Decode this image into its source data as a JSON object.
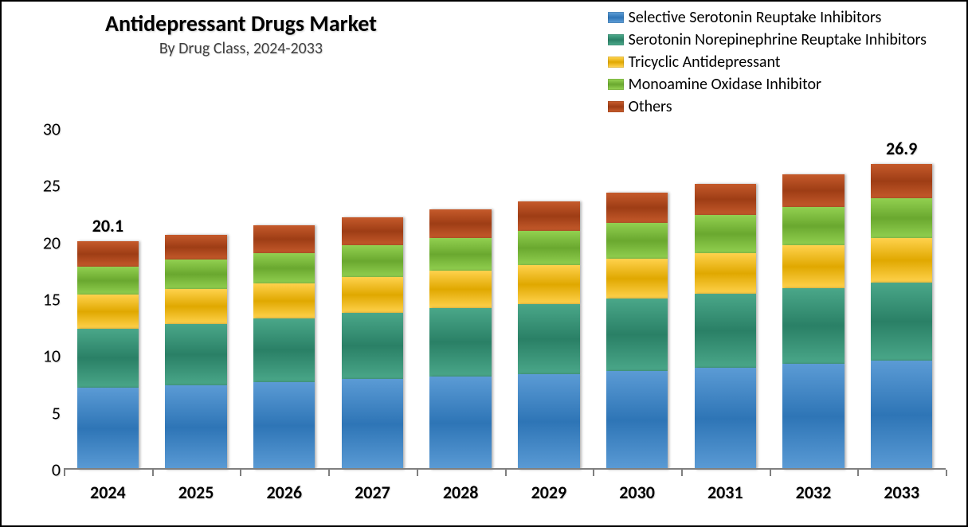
{
  "chart": {
    "type": "stacked-bar",
    "title": "Antidepressant Drugs Market",
    "subtitle": "By Drug Class, 2024-2033",
    "title_fontsize": 28,
    "subtitle_fontsize": 20,
    "background_color": "#ffffff",
    "border_color": "#000000",
    "ylim": [
      0,
      30
    ],
    "ytick_step": 5,
    "yticks": [
      0,
      5,
      10,
      15,
      20,
      25,
      30
    ],
    "axis_font_size": 22,
    "axis_font_weight_x": "700",
    "baseline_color": "#7f7f7f",
    "bar_width_pct": 70,
    "categories": [
      "2024",
      "2025",
      "2026",
      "2027",
      "2028",
      "2029",
      "2030",
      "2031",
      "2032",
      "2033"
    ],
    "series": [
      {
        "name": "Selective Serotonin Reuptake Inhibitors",
        "color_class": "grad-blue",
        "color": "#2e75b6"
      },
      {
        "name": "Serotonin Norepinephrine Reuptake Inhibitors",
        "color_class": "grad-teal",
        "color": "#2a8066"
      },
      {
        "name": "Tricyclic Antidepressant",
        "color_class": "grad-gold",
        "color": "#e0a800"
      },
      {
        "name": "Monoamine Oxidase Inhibitor",
        "color_class": "grad-green",
        "color": "#6aa82f"
      },
      {
        "name": "Others",
        "color_class": "grad-brick",
        "color": "#9e3d15"
      }
    ],
    "stacks": [
      {
        "total": 20.1,
        "label": "20.1",
        "values": [
          7.2,
          5.2,
          3.0,
          2.5,
          2.2
        ]
      },
      {
        "total": 20.7,
        "label": "",
        "values": [
          7.4,
          5.4,
          3.1,
          2.6,
          2.2
        ]
      },
      {
        "total": 21.5,
        "label": "",
        "values": [
          7.7,
          5.6,
          3.1,
          2.7,
          2.4
        ]
      },
      {
        "total": 22.2,
        "label": "",
        "values": [
          8.0,
          5.8,
          3.2,
          2.8,
          2.4
        ]
      },
      {
        "total": 22.9,
        "label": "",
        "values": [
          8.2,
          6.0,
          3.3,
          2.9,
          2.5
        ]
      },
      {
        "total": 23.6,
        "label": "",
        "values": [
          8.4,
          6.2,
          3.4,
          3.0,
          2.6
        ]
      },
      {
        "total": 24.4,
        "label": "",
        "values": [
          8.7,
          6.4,
          3.5,
          3.1,
          2.7
        ]
      },
      {
        "total": 25.2,
        "label": "",
        "values": [
          9.0,
          6.5,
          3.6,
          3.3,
          2.8
        ]
      },
      {
        "total": 26.0,
        "label": "",
        "values": [
          9.3,
          6.7,
          3.8,
          3.3,
          2.9
        ]
      },
      {
        "total": 26.9,
        "label": "26.9",
        "values": [
          9.6,
          6.9,
          3.9,
          3.5,
          3.0
        ]
      }
    ]
  }
}
